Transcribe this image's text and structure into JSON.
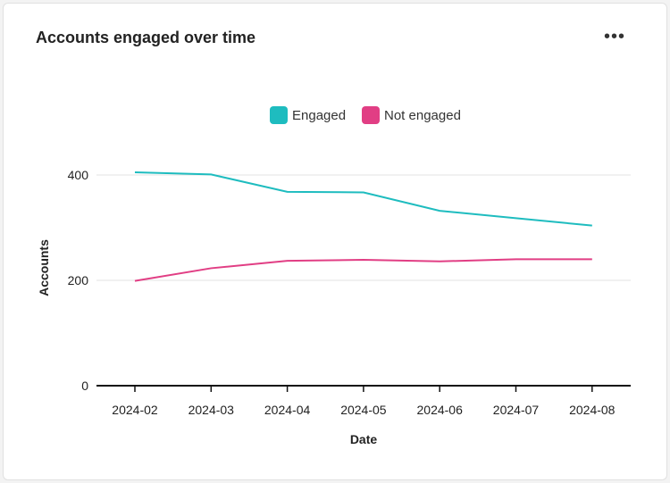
{
  "header": {
    "title": "Accounts engaged over time",
    "more_label": "•••"
  },
  "chart_data": {
    "type": "line",
    "title": "Accounts engaged over time",
    "xlabel": "Date",
    "ylabel": "Accounts",
    "categories": [
      "2024-02",
      "2024-03",
      "2024-04",
      "2024-05",
      "2024-06",
      "2024-07",
      "2024-08"
    ],
    "yticks": [
      0,
      200,
      400
    ],
    "ylim": [
      0,
      480
    ],
    "grid": true,
    "legend": "top-center",
    "series": [
      {
        "name": "Engaged",
        "color": "#1ebcbf",
        "values": [
          405,
          401,
          368,
          367,
          332,
          318,
          304
        ]
      },
      {
        "name": "Not engaged",
        "color": "#e13e84",
        "values": [
          199,
          223,
          237,
          239,
          236,
          240,
          240
        ]
      }
    ]
  }
}
